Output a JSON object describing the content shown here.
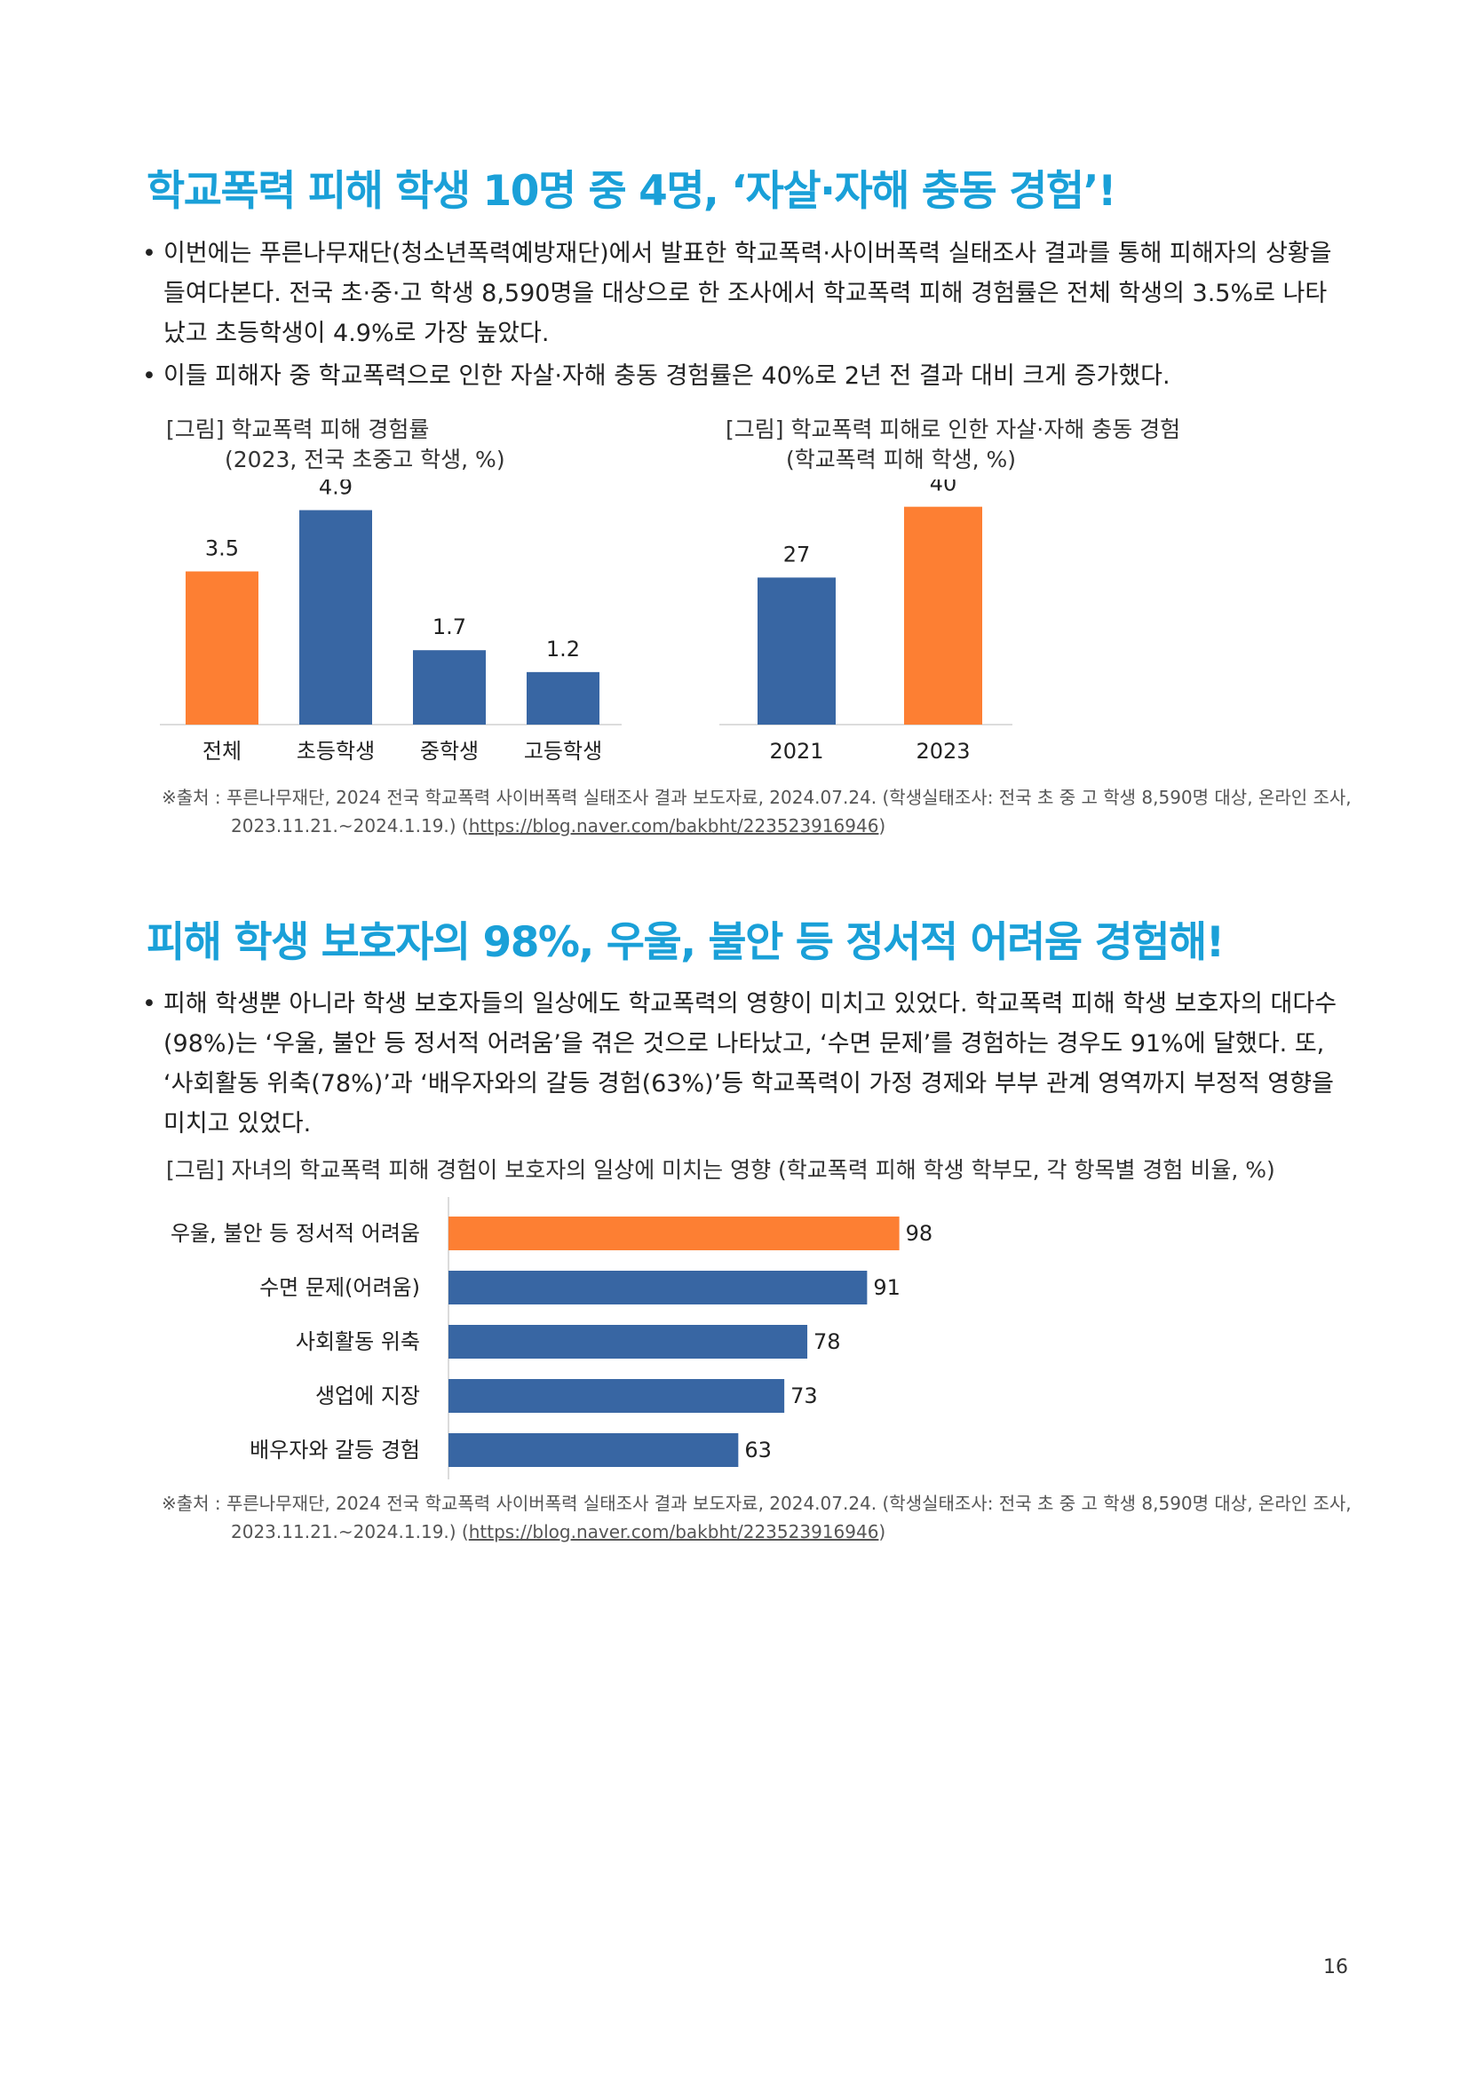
{
  "section1": {
    "heading": "학교폭력 피해 학생 10명 중 4명, ‘자살·자해 충동 경험’!",
    "bullets": [
      "이번에는 푸른나무재단(청소년폭력예방재단)에서 발표한 학교폭력·사이버폭력 실태조사 결과를 통해 피해자의 상황을 들여다본다. 전국 초·중·고 학생 8,590명을 대상으로 한 조사에서 학교폭력 피해 경험률은 전체 학생의 3.5%로 나타났고 초등학생이 4.9%로 가장 높았다.",
      "이들 피해자 중 학교폭력으로 인한 자살·자해 충동 경험률은 40%로 2년 전 결과 대비 크게 증가했다."
    ],
    "bullet_symbol": "•",
    "chart1_caption_line1": "[그림] 학교폭력 피해 경험률",
    "chart1_caption_line2": "(2023, 전국 초중고 학생, %)",
    "chart2_caption_line1": "[그림] 학교폭력 피해로 인한 자살·자해 충동 경험",
    "chart2_caption_line2": "(학교폭력 피해 학생, %)",
    "source_line1": "※출처 : 푸른나무재단, 2024 전국 학교폭력 사이버폭력 실태조사 결과 보도자료, 2024.07.24. (학생실태조사: 전국 초 중 고 학생 8,590명 대상, 온라인 조사,",
    "source_line2_prefix": "2023.11.21.~2024.1.19.) (",
    "source_url": "https://blog.naver.com/bakbht/223523916946",
    "source_line2_suffix": ")"
  },
  "section2": {
    "heading": "피해 학생 보호자의 98%, 우울, 불안 등 정서적 어려움 경험해!",
    "bullets": [
      "피해 학생뿐 아니라 학생 보호자들의 일상에도 학교폭력의 영향이 미치고 있었다. 학교폭력 피해 학생 보호자의 대다수(98%)는 ‘우울, 불안 등 정서적 어려움’을 겪은 것으로 나타났고, ‘수면 문제’를 경험하는 경우도 91%에 달했다. 또, ‘사회활동 위축(78%)’과 ‘배우자와의 갈등 경험(63%)’등 학교폭력이 가정 경제와 부부 관계 영역까지 부정적 영향을 미치고 있었다."
    ],
    "bullet_symbol": "•",
    "chart3_caption": "[그림] 자녀의 학교폭력 피해 경험이 보호자의 일상에 미치는 영향 (학교폭력 피해 학생 학부모, 각 항목별 경험 비율, %)",
    "source_line1": "※출처 : 푸른나무재단, 2024 전국 학교폭력 사이버폭력 실태조사 결과 보도자료, 2024.07.24. (학생실태조사: 전국 초 중 고 학생 8,590명 대상, 온라인 조사,",
    "source_line2_prefix": "2023.11.21.~2024.1.19.) (",
    "source_url": "https://blog.naver.com/bakbht/223523916946",
    "source_line2_suffix": ")"
  },
  "page_number": "16",
  "colors": {
    "heading": "#1aa0d8",
    "highlight": "#fd7f33",
    "bar": "#3866a3"
  },
  "chart_data": [
    {
      "type": "bar",
      "title": "[그림] 학교폭력 피해 경험률",
      "subtitle": "(2023, 전국 초중고 학생, %)",
      "categories": [
        "전체",
        "초등학생",
        "중학생",
        "고등학생"
      ],
      "values": [
        3.5,
        4.9,
        1.7,
        1.2
      ],
      "value_labels": [
        "3.5",
        "4.9",
        "1.7",
        "1.2"
      ],
      "highlight_index": 0,
      "ylim": [
        0,
        5.6
      ],
      "grid": false
    },
    {
      "type": "bar",
      "title": "[그림] 학교폭력 피해로 인한 자살·자해 충동 경험",
      "subtitle": "(학교폭력 피해 학생, %)",
      "categories": [
        "2021",
        "2023"
      ],
      "values": [
        27,
        40
      ],
      "value_labels": [
        "27",
        "40"
      ],
      "highlight_index": 1,
      "ylim": [
        0,
        45
      ],
      "grid": false
    },
    {
      "type": "bar",
      "orientation": "horizontal",
      "title": "[그림] 자녀의 학교폭력 피해 경험이 보호자의 일상에 미치는 영향 (학교폭력 피해 학생 학부모, 각 항목별 경험 비율, %)",
      "categories": [
        "우울, 불안 등 정서적 어려움",
        "수면 문제(어려움)",
        "사회활동 위축",
        "생업에 지장",
        "배우자와 갈등 경험"
      ],
      "values": [
        98,
        91,
        78,
        73,
        63
      ],
      "value_labels": [
        "98",
        "91",
        "78",
        "73",
        "63"
      ],
      "highlight_index": 0,
      "xlim": [
        0,
        100
      ],
      "grid": false
    }
  ]
}
